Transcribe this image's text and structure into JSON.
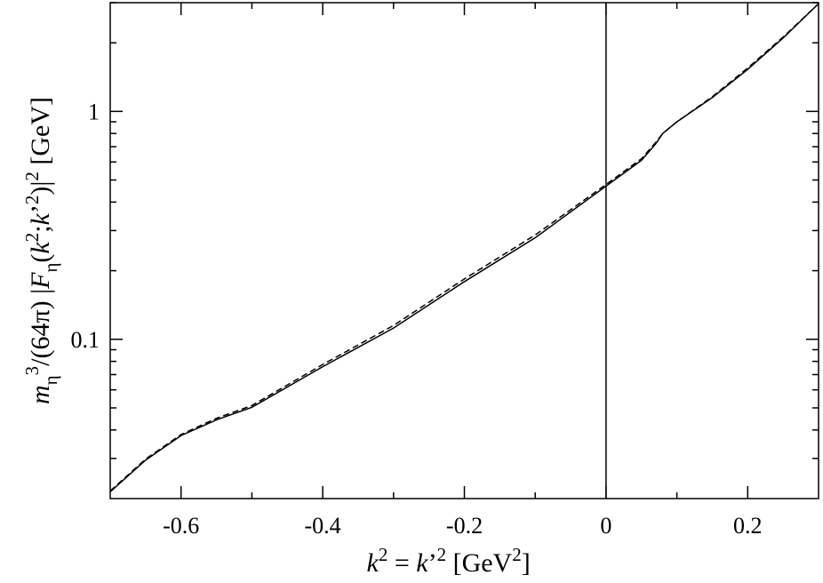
{
  "chart_data": {
    "type": "line",
    "xlabel": [
      {
        "text": "k",
        "pos": "base",
        "italic": true
      },
      {
        "text": "2",
        "pos": "sup"
      },
      {
        "text": " = ",
        "pos": "base"
      },
      {
        "text": "k",
        "pos": "base",
        "italic": true
      },
      {
        "text": "’",
        "pos": "base"
      },
      {
        "text": "2",
        "pos": "sup"
      },
      {
        "text": "  [GeV",
        "pos": "base"
      },
      {
        "text": "2",
        "pos": "sup"
      },
      {
        "text": "]",
        "pos": "base"
      }
    ],
    "ylabel": [
      {
        "text": "m",
        "pos": "base",
        "italic": true
      },
      {
        "text": "η",
        "pos": "sub"
      },
      {
        "text": "3",
        "pos": "sup"
      },
      {
        "text": "/(64π) |",
        "pos": "base"
      },
      {
        "text": "F",
        "pos": "base",
        "italic": true
      },
      {
        "text": "η",
        "pos": "sub"
      },
      {
        "text": "(",
        "pos": "base"
      },
      {
        "text": "k",
        "pos": "base",
        "italic": true
      },
      {
        "text": "2",
        "pos": "sup"
      },
      {
        "text": ";",
        "pos": "base"
      },
      {
        "text": "k",
        "pos": "base",
        "italic": true
      },
      {
        "text": "’",
        "pos": "base"
      },
      {
        "text": "2",
        "pos": "sup"
      },
      {
        "text": ")|",
        "pos": "base"
      },
      {
        "text": "2",
        "pos": "sup"
      },
      {
        "text": "  [GeV]",
        "pos": "base"
      }
    ],
    "x": [
      -0.7,
      -0.65,
      -0.6,
      -0.55,
      -0.5,
      -0.4,
      -0.3,
      -0.2,
      -0.1,
      0,
      0.05,
      0.07,
      0.08,
      0.1,
      0.15,
      0.2,
      0.25,
      0.3
    ],
    "series": [
      {
        "color": "#000000",
        "dash": false,
        "values": [
          0.0214,
          0.0295,
          0.0378,
          0.0443,
          0.0503,
          0.0758,
          0.112,
          0.179,
          0.279,
          0.47,
          0.61,
          0.72,
          0.8,
          0.9,
          1.15,
          1.53,
          2.1,
          2.97
        ]
      },
      {
        "color": "#000000",
        "dash": true,
        "values": [
          0.0216,
          0.0298,
          0.0382,
          0.045,
          0.0512,
          0.0775,
          0.115,
          0.184,
          0.287,
          0.478,
          0.62,
          0.73,
          0.8,
          0.9,
          1.16,
          1.55,
          2.12,
          2.97
        ]
      }
    ],
    "xlim": [
      -0.7,
      0.3
    ],
    "ylim": [
      0.02,
      3
    ],
    "ylog": true,
    "xticks": [
      -0.6,
      -0.4,
      -0.2,
      0,
      0.2
    ],
    "xminorticks": [
      -0.5,
      -0.3,
      -0.1,
      0.1
    ],
    "yticks": [
      0.1,
      1
    ],
    "yminorticks": [
      0.03,
      0.04,
      0.05,
      0.06,
      0.07,
      0.08,
      0.09,
      0.2,
      0.3,
      0.4,
      0.5,
      0.6,
      0.7,
      0.8,
      0.9,
      2,
      3
    ],
    "zero_line": true,
    "mirror_ticks": true
  }
}
